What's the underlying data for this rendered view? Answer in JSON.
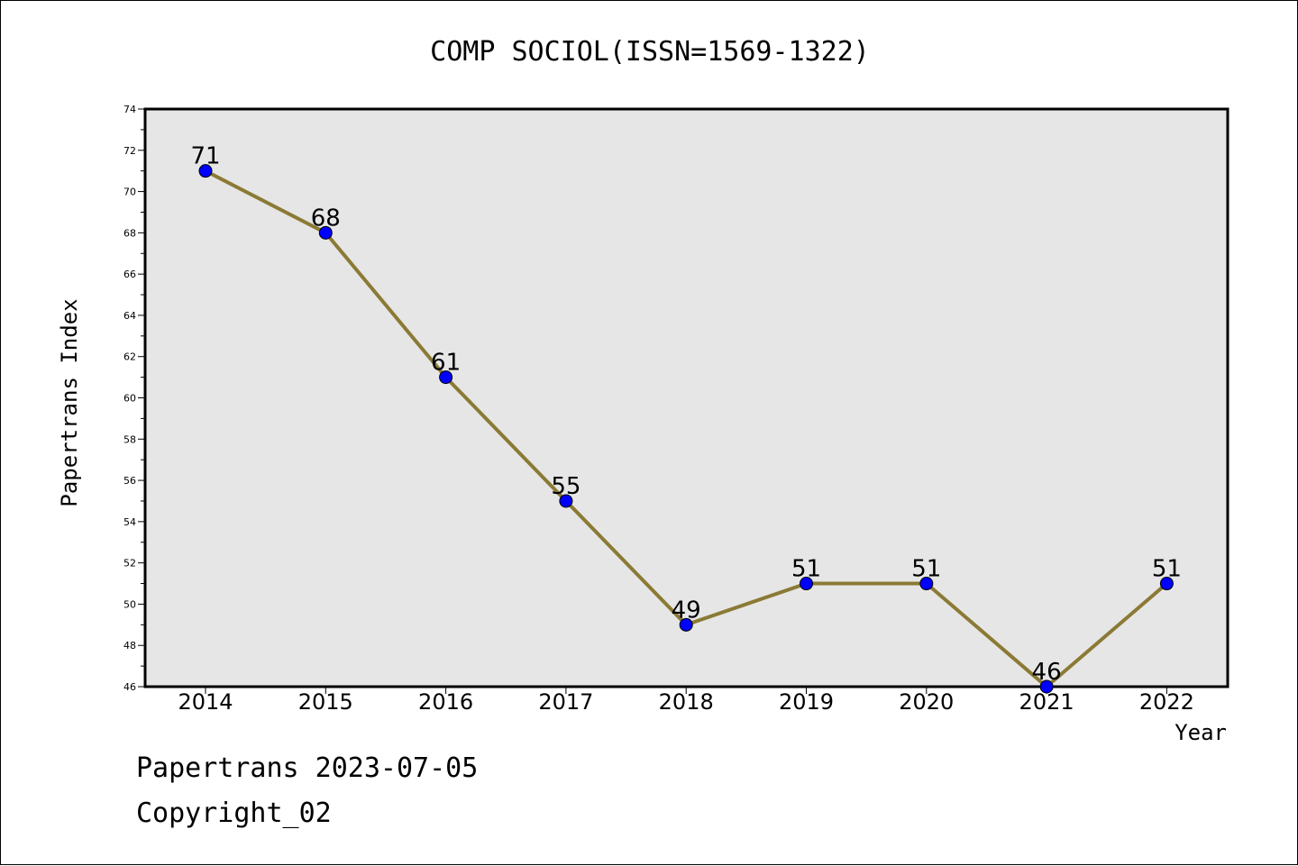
{
  "chart_data": {
    "type": "line",
    "title": "COMP SOCIOL(ISSN=1569-1322)",
    "xlabel": "Year",
    "ylabel": "Papertrans Index",
    "categories": [
      "2014",
      "2015",
      "2016",
      "2017",
      "2018",
      "2019",
      "2020",
      "2021",
      "2022"
    ],
    "values": [
      71,
      68,
      61,
      55,
      49,
      51,
      51,
      46,
      51
    ],
    "ylim": [
      46,
      74
    ],
    "yticks": [
      46,
      48,
      50,
      52,
      54,
      56,
      58,
      60,
      62,
      64,
      66,
      68,
      70,
      72,
      74
    ],
    "grid": false,
    "colors": {
      "line": "#8b7a35",
      "marker": "#0000ff",
      "plot_bg": "#e6e6e6"
    }
  },
  "footer": {
    "line1": "Papertrans 2023-07-05",
    "line2": "Copyright_02"
  }
}
